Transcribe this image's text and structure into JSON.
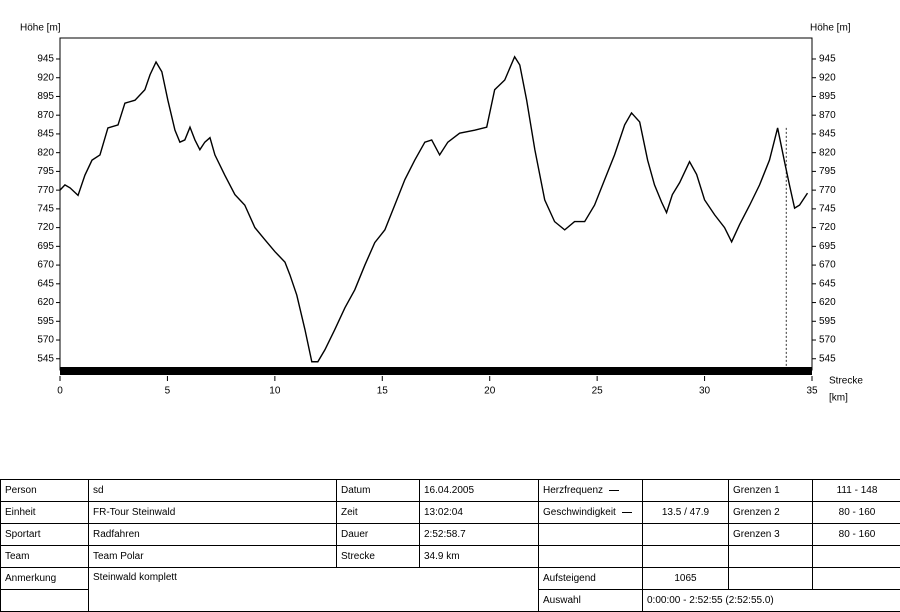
{
  "chart_data": {
    "type": "line",
    "y_label": "Höhe [m]",
    "x_label": [
      "Strecke",
      "[km]"
    ],
    "color": "#000000",
    "x": [
      0,
      0.23,
      0.47,
      0.84,
      1.16,
      1.49,
      1.86,
      2.23,
      2.7,
      3.02,
      3.49,
      3.95,
      4.19,
      4.47,
      4.74,
      5.02,
      5.35,
      5.58,
      5.81,
      6.05,
      6.28,
      6.51,
      6.74,
      6.98,
      7.21,
      7.67,
      8.14,
      8.37,
      8.6,
      9.07,
      9.53,
      10,
      10.47,
      10.7,
      11.02,
      11.4,
      11.72,
      12,
      12.33,
      12.79,
      13.26,
      13.72,
      14.19,
      14.65,
      15.12,
      15.58,
      16.05,
      16.51,
      16.98,
      17.3,
      17.67,
      18.05,
      18.6,
      19.3,
      19.86,
      20.23,
      20.7,
      21.16,
      21.4,
      21.72,
      22.1,
      22.56,
      23.02,
      23.49,
      23.95,
      24.42,
      24.88,
      25.35,
      25.81,
      26.28,
      26.6,
      26.98,
      27.35,
      27.67,
      28,
      28.23,
      28.5,
      28.84,
      29.3,
      29.63,
      30,
      30.47,
      30.93,
      31.26,
      31.63,
      32.1,
      32.56,
      33.02,
      33.4,
      33.72,
      33.95,
      34.19,
      34.42,
      34.79
    ],
    "values": [
      770,
      777,
      773,
      763,
      790,
      810,
      817,
      853,
      857,
      886,
      890,
      904,
      924,
      941,
      928,
      890,
      850,
      834,
      837,
      854,
      837,
      824,
      834,
      840,
      817,
      790,
      764,
      757,
      750,
      720,
      704,
      688,
      674,
      657,
      630,
      584,
      541,
      541,
      557,
      584,
      613,
      637,
      670,
      700,
      717,
      750,
      784,
      810,
      834,
      837,
      817,
      834,
      846,
      850,
      854,
      904,
      917,
      948,
      937,
      890,
      824,
      757,
      728,
      717,
      728,
      728,
      750,
      784,
      817,
      857,
      873,
      861,
      810,
      777,
      754,
      740,
      764,
      780,
      808,
      791,
      757,
      737,
      720,
      701,
      724,
      750,
      777,
      810,
      853,
      808,
      777,
      746,
      750,
      766
    ],
    "cursor_x": 33.8,
    "xlim": [
      0,
      35
    ],
    "xticks": [
      0,
      5,
      10,
      15,
      20,
      25,
      30,
      35
    ],
    "ylim": [
      530,
      973
    ],
    "yticks": [
      545,
      570,
      595,
      620,
      645,
      670,
      695,
      720,
      745,
      770,
      795,
      820,
      845,
      870,
      895,
      920,
      945
    ]
  },
  "table": {
    "rows": [
      [
        "Person",
        "sd",
        "Datum",
        "16.04.2005",
        "Herzfrequenz",
        "Grenzen 1",
        "111 - 148"
      ],
      [
        "Einheit",
        "FR-Tour Steinwald",
        "Zeit",
        "13:02:04",
        "Geschwindigkeit",
        "13.5 / 47.9",
        "Grenzen 2",
        "80 - 160"
      ],
      [
        "Sportart",
        "Radfahren",
        "Dauer",
        "2:52:58.7",
        "Grenzen 3",
        "80 - 160"
      ],
      [
        "Team",
        "Team Polar",
        "Strecke",
        "34.9 km"
      ],
      [
        "Anmerkung",
        "Steinwald komplett",
        "Aufsteigend",
        "1065"
      ],
      [
        "Auswahl",
        "0:00:00 - 2:52:55 (2:52:55.0)"
      ]
    ]
  }
}
